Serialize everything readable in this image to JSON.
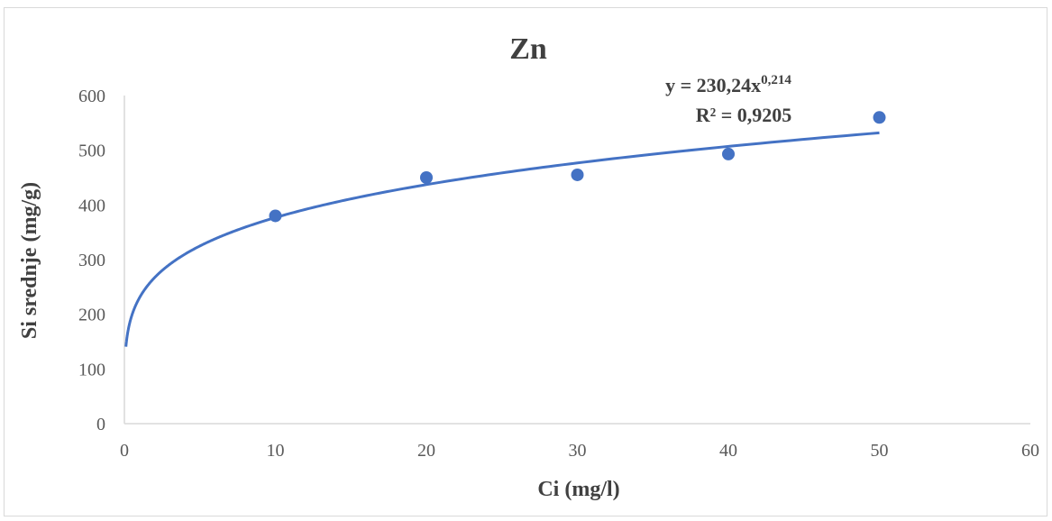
{
  "chart_data": {
    "type": "scatter",
    "title": "Zn",
    "xlabel": "Ci (mg/l)",
    "ylabel": "Si srednje (mg/g)",
    "xlim": [
      0,
      60
    ],
    "ylim": [
      0,
      600
    ],
    "xticks": [
      "0",
      "10",
      "20",
      "30",
      "40",
      "50",
      "60"
    ],
    "yticks": [
      "0",
      "100",
      "200",
      "300",
      "400",
      "500",
      "600"
    ],
    "series": [
      {
        "x": [
          10,
          20,
          30,
          40,
          50
        ],
        "y": [
          380,
          450,
          455,
          493,
          560
        ],
        "color": "#4472C4"
      }
    ],
    "trendline": {
      "type": "power",
      "a": 230.24,
      "b": 0.214,
      "x_range": [
        0.1,
        50
      ],
      "color": "#4472C4",
      "equation_prefix": "y = 230,24x",
      "equation_exponent": "0,214",
      "r2_text": "R² = 0,9205"
    },
    "grid": false,
    "legend": "none"
  }
}
